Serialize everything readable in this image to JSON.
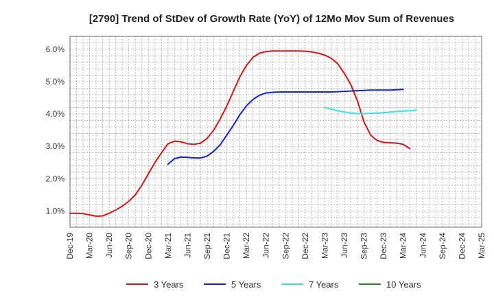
{
  "chart_data": {
    "type": "line",
    "title": "[2790]  Trend of StDev of Growth Rate (YoY) of 12Mo Mov Sum of Revenues",
    "xlabel": "",
    "ylabel": "",
    "ylim": [
      0.5,
      6.4
    ],
    "y_ticks": [
      1.0,
      2.0,
      3.0,
      4.0,
      5.0,
      6.0
    ],
    "y_tick_labels": [
      "1.0%",
      "2.0%",
      "3.0%",
      "4.0%",
      "5.0%",
      "6.0%"
    ],
    "x_tick_labels": [
      "Dec-19",
      "Mar-20",
      "Jun-20",
      "Sep-20",
      "Dec-20",
      "Mar-21",
      "Jun-21",
      "Sep-21",
      "Dec-21",
      "Mar-22",
      "Jun-22",
      "Sep-22",
      "Dec-22",
      "Mar-23",
      "Jun-23",
      "Sep-23",
      "Dec-23",
      "Mar-24",
      "Jun-24",
      "Sep-24",
      "Dec-24",
      "Mar-25"
    ],
    "x_range_months": [
      0,
      63
    ],
    "grid": true,
    "series": [
      {
        "name": "3 Years",
        "color": "#dd1111",
        "points": [
          [
            0,
            0.93
          ],
          [
            1,
            0.93
          ],
          [
            2,
            0.92
          ],
          [
            3,
            0.88
          ],
          [
            4,
            0.84
          ],
          [
            5,
            0.85
          ],
          [
            6,
            0.93
          ],
          [
            7,
            1.03
          ],
          [
            8,
            1.15
          ],
          [
            9,
            1.3
          ],
          [
            10,
            1.5
          ],
          [
            11,
            1.8
          ],
          [
            12,
            2.15
          ],
          [
            13,
            2.5
          ],
          [
            14,
            2.8
          ],
          [
            15,
            3.08
          ],
          [
            16,
            3.16
          ],
          [
            17,
            3.14
          ],
          [
            18,
            3.08
          ],
          [
            19,
            3.06
          ],
          [
            20,
            3.1
          ],
          [
            21,
            3.25
          ],
          [
            22,
            3.5
          ],
          [
            23,
            3.85
          ],
          [
            24,
            4.25
          ],
          [
            25,
            4.7
          ],
          [
            26,
            5.15
          ],
          [
            27,
            5.5
          ],
          [
            28,
            5.75
          ],
          [
            29,
            5.88
          ],
          [
            30,
            5.93
          ],
          [
            31,
            5.95
          ],
          [
            32,
            5.95
          ],
          [
            33,
            5.95
          ],
          [
            34,
            5.95
          ],
          [
            35,
            5.95
          ],
          [
            36,
            5.94
          ],
          [
            37,
            5.92
          ],
          [
            38,
            5.88
          ],
          [
            39,
            5.82
          ],
          [
            40,
            5.72
          ],
          [
            41,
            5.55
          ],
          [
            42,
            5.25
          ],
          [
            43,
            4.9
          ],
          [
            44,
            4.4
          ],
          [
            45,
            3.75
          ],
          [
            46,
            3.35
          ],
          [
            47,
            3.18
          ],
          [
            48,
            3.12
          ],
          [
            49,
            3.11
          ],
          [
            50,
            3.1
          ],
          [
            51,
            3.06
          ],
          [
            52,
            2.93
          ]
        ]
      },
      {
        "name": "5 Years",
        "color": "#1122cc",
        "points": [
          [
            15,
            2.45
          ],
          [
            16,
            2.62
          ],
          [
            17,
            2.67
          ],
          [
            18,
            2.66
          ],
          [
            19,
            2.64
          ],
          [
            20,
            2.64
          ],
          [
            21,
            2.7
          ],
          [
            22,
            2.85
          ],
          [
            23,
            3.05
          ],
          [
            24,
            3.35
          ],
          [
            25,
            3.65
          ],
          [
            26,
            3.98
          ],
          [
            27,
            4.25
          ],
          [
            28,
            4.45
          ],
          [
            29,
            4.58
          ],
          [
            30,
            4.65
          ],
          [
            31,
            4.67
          ],
          [
            32,
            4.68
          ],
          [
            33,
            4.68
          ],
          [
            34,
            4.68
          ],
          [
            35,
            4.68
          ],
          [
            36,
            4.68
          ],
          [
            37,
            4.68
          ],
          [
            38,
            4.68
          ],
          [
            39,
            4.68
          ],
          [
            40,
            4.68
          ],
          [
            41,
            4.69
          ],
          [
            42,
            4.7
          ],
          [
            43,
            4.71
          ],
          [
            44,
            4.72
          ],
          [
            45,
            4.73
          ],
          [
            46,
            4.74
          ],
          [
            47,
            4.74
          ],
          [
            48,
            4.74
          ],
          [
            49,
            4.74
          ],
          [
            50,
            4.75
          ],
          [
            51,
            4.76
          ]
        ]
      },
      {
        "name": "7 Years",
        "color": "#33e3e3",
        "points": [
          [
            39,
            4.2
          ],
          [
            40,
            4.15
          ],
          [
            41,
            4.1
          ],
          [
            42,
            4.06
          ],
          [
            43,
            4.03
          ],
          [
            44,
            4.01
          ],
          [
            45,
            4.01
          ],
          [
            46,
            4.02
          ],
          [
            47,
            4.03
          ],
          [
            48,
            4.04
          ],
          [
            49,
            4.06
          ],
          [
            50,
            4.08
          ],
          [
            51,
            4.09
          ],
          [
            52,
            4.1
          ],
          [
            53,
            4.12
          ]
        ]
      },
      {
        "name": "10 Years",
        "color": "#228822",
        "points": []
      }
    ],
    "legend_position": "bottom"
  }
}
